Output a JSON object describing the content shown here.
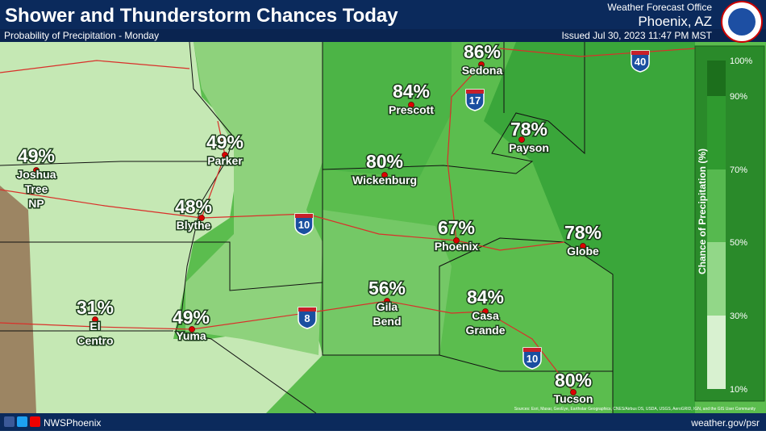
{
  "header": {
    "title": "Shower and Thunderstorm Chances Today",
    "subtitle": "Probability of Precipitation - Monday",
    "office": "Weather Forecast Office",
    "location": "Phoenix, AZ",
    "issued": "Issued Jul 30, 2023 11:47 PM MST"
  },
  "cities": [
    {
      "name": [
        "Sedona"
      ],
      "pop": "86%"
    },
    {
      "name": [
        "Prescott"
      ],
      "pop": "84%"
    },
    {
      "name": [
        "Payson"
      ],
      "pop": "78%"
    },
    {
      "name": [
        "Wickenburg"
      ],
      "pop": "80%"
    },
    {
      "name": [
        "Phoenix"
      ],
      "pop": "67%"
    },
    {
      "name": [
        "Globe"
      ],
      "pop": "78%"
    },
    {
      "name": [
        "Casa",
        "Grande"
      ],
      "pop": "84%"
    },
    {
      "name": [
        "Gila",
        "Bend"
      ],
      "pop": "56%"
    },
    {
      "name": [
        "Tucson"
      ],
      "pop": "80%"
    },
    {
      "name": [
        "Parker"
      ],
      "pop": "49%"
    },
    {
      "name": [
        "Blythe"
      ],
      "pop": "48%"
    },
    {
      "name": [
        "Yuma"
      ],
      "pop": "49%"
    },
    {
      "name": [
        "El",
        "Centro"
      ],
      "pop": "31%"
    },
    {
      "name": [
        "Joshua",
        "Tree",
        "NP"
      ],
      "pop": "49%"
    }
  ],
  "interstates": [
    "40",
    "17",
    "10",
    "8",
    "10"
  ],
  "legend": {
    "title": "Chance of Precipitation (%)",
    "ticks": [
      "100%",
      "90%",
      "70%",
      "50%",
      "30%",
      "10%"
    ]
  },
  "attribution": "Sources: Esri, Maxar, GeoEye, Earthstar Geographics, CNES/Airbus DS, USDA, USGS, AeroGRID, IGN, and the GIS User Community",
  "footer": {
    "handle": "NWSPhoenix",
    "url": "weather.gov/psr"
  }
}
